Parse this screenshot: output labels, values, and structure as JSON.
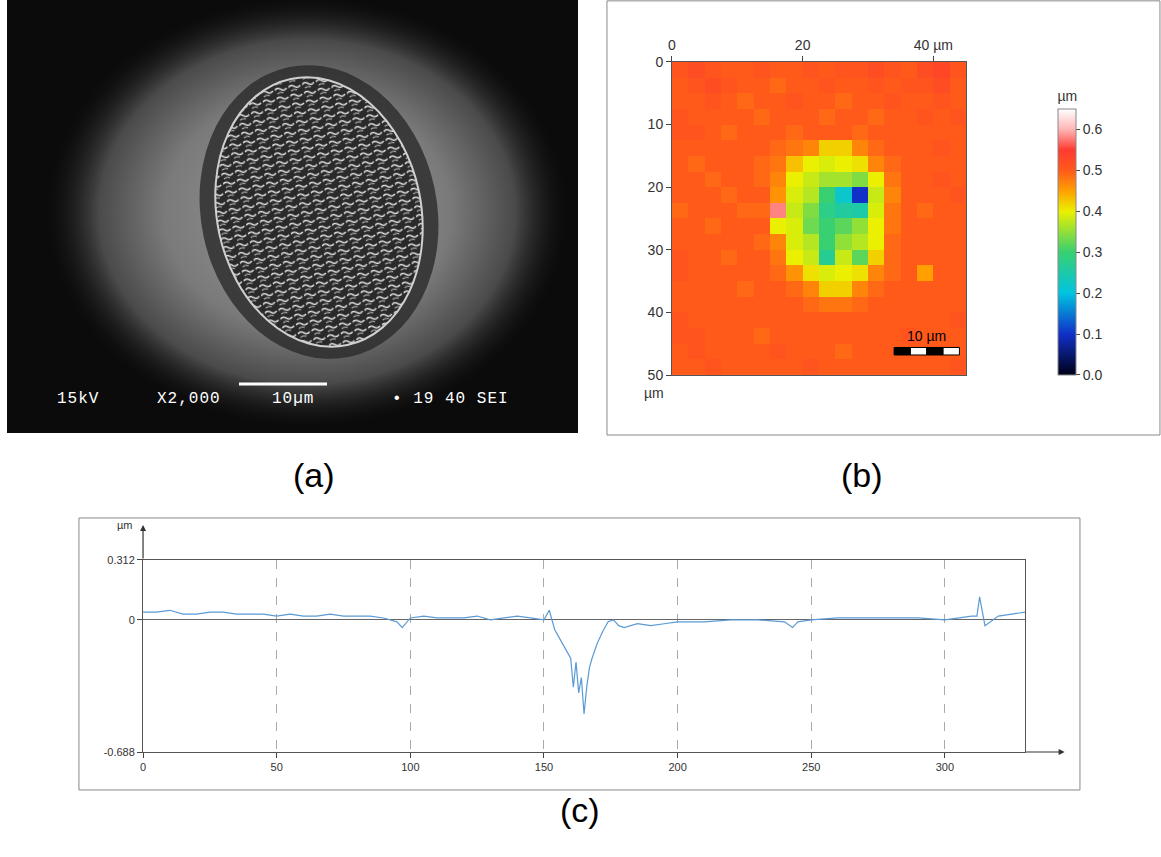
{
  "chart_data": [
    {
      "type": "image",
      "title": "(a)",
      "annotations": [
        "15kV",
        "X2,000",
        "10µm",
        "• 19 40 SEI"
      ]
    },
    {
      "type": "heatmap",
      "title": "(b)",
      "x": [
        1.25,
        3.75,
        6.25,
        8.75,
        11.25,
        13.75,
        16.25,
        18.75,
        21.25,
        23.75,
        26.25,
        28.75,
        31.25,
        33.75,
        36.25,
        38.75,
        41.25,
        43.75
      ],
      "y": [
        1.25,
        3.75,
        6.25,
        8.75,
        11.25,
        13.75,
        16.25,
        18.75,
        21.25,
        23.75,
        26.25,
        28.75,
        31.25,
        33.75,
        36.25,
        38.75,
        41.25,
        43.75,
        46.25,
        48.75
      ],
      "z": [
        [
          0.51,
          0.52,
          0.51,
          0.5,
          0.5,
          0.51,
          0.5,
          0.5,
          0.51,
          0.5,
          0.51,
          0.51,
          0.52,
          0.51,
          0.5,
          0.52,
          0.53,
          0.51
        ],
        [
          0.5,
          0.51,
          0.52,
          0.51,
          0.5,
          0.5,
          0.49,
          0.5,
          0.5,
          0.51,
          0.5,
          0.5,
          0.51,
          0.5,
          0.51,
          0.51,
          0.52,
          0.5
        ],
        [
          0.5,
          0.5,
          0.51,
          0.5,
          0.49,
          0.5,
          0.5,
          0.51,
          0.5,
          0.5,
          0.49,
          0.5,
          0.5,
          0.51,
          0.5,
          0.5,
          0.51,
          0.5
        ],
        [
          0.51,
          0.5,
          0.5,
          0.5,
          0.5,
          0.49,
          0.5,
          0.5,
          0.5,
          0.49,
          0.5,
          0.5,
          0.49,
          0.5,
          0.5,
          0.51,
          0.5,
          0.51
        ],
        [
          0.51,
          0.51,
          0.5,
          0.49,
          0.5,
          0.5,
          0.5,
          0.49,
          0.5,
          0.5,
          0.5,
          0.49,
          0.5,
          0.5,
          0.5,
          0.5,
          0.5,
          0.5
        ],
        [
          0.5,
          0.5,
          0.5,
          0.5,
          0.5,
          0.5,
          0.49,
          0.48,
          0.47,
          0.42,
          0.42,
          0.47,
          0.49,
          0.5,
          0.5,
          0.5,
          0.51,
          0.5
        ],
        [
          0.5,
          0.49,
          0.5,
          0.5,
          0.5,
          0.49,
          0.48,
          0.43,
          0.4,
          0.39,
          0.4,
          0.41,
          0.47,
          0.49,
          0.5,
          0.5,
          0.5,
          0.5
        ],
        [
          0.5,
          0.5,
          0.49,
          0.5,
          0.5,
          0.49,
          0.47,
          0.4,
          0.38,
          0.36,
          0.36,
          0.34,
          0.4,
          0.48,
          0.5,
          0.5,
          0.51,
          0.5
        ],
        [
          0.5,
          0.5,
          0.5,
          0.49,
          0.5,
          0.5,
          0.46,
          0.39,
          0.37,
          0.3,
          0.22,
          0.1,
          0.38,
          0.47,
          0.5,
          0.5,
          0.5,
          0.51
        ],
        [
          0.49,
          0.5,
          0.5,
          0.5,
          0.49,
          0.49,
          0.58,
          0.38,
          0.34,
          0.28,
          0.26,
          0.25,
          0.39,
          0.48,
          0.5,
          0.49,
          0.5,
          0.5
        ],
        [
          0.5,
          0.5,
          0.49,
          0.5,
          0.5,
          0.5,
          0.4,
          0.39,
          0.33,
          0.3,
          0.32,
          0.35,
          0.4,
          0.48,
          0.5,
          0.5,
          0.5,
          0.5
        ],
        [
          0.5,
          0.5,
          0.5,
          0.5,
          0.5,
          0.49,
          0.47,
          0.39,
          0.37,
          0.3,
          0.35,
          0.37,
          0.4,
          0.49,
          0.5,
          0.5,
          0.5,
          0.5
        ],
        [
          0.51,
          0.5,
          0.5,
          0.49,
          0.5,
          0.5,
          0.48,
          0.4,
          0.38,
          0.27,
          0.38,
          0.32,
          0.42,
          0.49,
          0.5,
          0.5,
          0.5,
          0.5
        ],
        [
          0.51,
          0.5,
          0.5,
          0.5,
          0.5,
          0.5,
          0.49,
          0.46,
          0.41,
          0.39,
          0.4,
          0.41,
          0.47,
          0.49,
          0.5,
          0.45,
          0.5,
          0.5
        ],
        [
          0.5,
          0.5,
          0.5,
          0.5,
          0.49,
          0.5,
          0.5,
          0.49,
          0.47,
          0.42,
          0.42,
          0.47,
          0.49,
          0.5,
          0.5,
          0.5,
          0.5,
          0.5
        ],
        [
          0.5,
          0.5,
          0.5,
          0.5,
          0.5,
          0.5,
          0.5,
          0.5,
          0.49,
          0.48,
          0.48,
          0.49,
          0.5,
          0.5,
          0.5,
          0.5,
          0.5,
          0.5
        ],
        [
          0.51,
          0.5,
          0.5,
          0.5,
          0.5,
          0.5,
          0.5,
          0.5,
          0.5,
          0.5,
          0.5,
          0.5,
          0.5,
          0.5,
          0.5,
          0.5,
          0.5,
          0.51
        ],
        [
          0.51,
          0.51,
          0.5,
          0.5,
          0.5,
          0.49,
          0.5,
          0.5,
          0.5,
          0.5,
          0.5,
          0.5,
          0.5,
          0.5,
          0.51,
          0.5,
          0.5,
          0.5
        ],
        [
          0.5,
          0.51,
          0.5,
          0.5,
          0.5,
          0.5,
          0.51,
          0.5,
          0.5,
          0.5,
          0.49,
          0.5,
          0.5,
          0.5,
          0.5,
          0.5,
          0.5,
          0.5
        ],
        [
          0.5,
          0.5,
          0.51,
          0.5,
          0.5,
          0.5,
          0.5,
          0.5,
          0.51,
          0.5,
          0.5,
          0.5,
          0.5,
          0.5,
          0.5,
          0.5,
          0.5,
          0.51
        ]
      ],
      "xlim": [
        0,
        45
      ],
      "xticks": [
        0,
        20,
        {
          "value": 40,
          "label": "40 µm"
        }
      ],
      "ylim": [
        0,
        50
      ],
      "yticks": [
        0,
        10,
        20,
        30,
        40,
        50
      ],
      "ylabel": "µm",
      "zlim": [
        0,
        0.65
      ],
      "zticks": [
        {
          "value": 0,
          "label": "0.0"
        },
        0.1,
        0.2,
        0.3,
        0.4,
        0.5,
        0.6
      ],
      "colorbar_title": "µm",
      "scale_bar": {
        "length": 10,
        "label": "10 µm"
      },
      "grid": false
    },
    {
      "type": "line",
      "title": "(c)",
      "x": [
        0,
        5,
        10,
        15,
        20,
        25,
        30,
        35,
        40,
        45,
        50,
        55,
        60,
        65,
        70,
        75,
        80,
        85,
        90,
        95,
        97,
        100,
        105,
        110,
        115,
        120,
        125,
        130,
        135,
        140,
        145,
        150,
        152,
        154,
        156,
        158,
        160,
        161,
        162,
        163,
        164,
        165,
        166,
        167,
        168,
        170,
        172,
        174,
        176,
        178,
        180,
        185,
        190,
        195,
        200,
        210,
        220,
        230,
        240,
        243,
        245,
        250,
        260,
        270,
        280,
        290,
        300,
        305,
        310,
        312,
        313,
        315,
        320,
        325,
        330
      ],
      "values": [
        0.04,
        0.04,
        0.05,
        0.03,
        0.03,
        0.04,
        0.04,
        0.03,
        0.03,
        0.03,
        0.02,
        0.03,
        0.02,
        0.02,
        0.03,
        0.02,
        0.02,
        0.02,
        0.01,
        -0.01,
        -0.04,
        0.01,
        0.02,
        0.01,
        0.01,
        0.01,
        0.02,
        0.0,
        0.01,
        0.02,
        0.01,
        0.0,
        0.05,
        -0.05,
        -0.1,
        -0.15,
        -0.2,
        -0.35,
        -0.22,
        -0.38,
        -0.3,
        -0.49,
        -0.35,
        -0.25,
        -0.2,
        -0.12,
        -0.06,
        -0.01,
        0.0,
        -0.03,
        -0.04,
        -0.02,
        -0.03,
        -0.02,
        -0.01,
        -0.01,
        0.0,
        0.0,
        -0.01,
        -0.04,
        -0.01,
        0.0,
        0.01,
        0.01,
        0.01,
        0.01,
        0.0,
        0.01,
        0.02,
        0.02,
        0.12,
        -0.03,
        0.02,
        0.03,
        0.04
      ],
      "color": "#5b9bd5",
      "xlim": [
        0,
        330
      ],
      "xticks": [
        0,
        50,
        100,
        150,
        200,
        250,
        300
      ],
      "ylim": [
        -0.688,
        0.312
      ],
      "yticks": [
        0.312,
        0,
        -0.688
      ],
      "ylabel": "µm",
      "grid": true
    }
  ]
}
